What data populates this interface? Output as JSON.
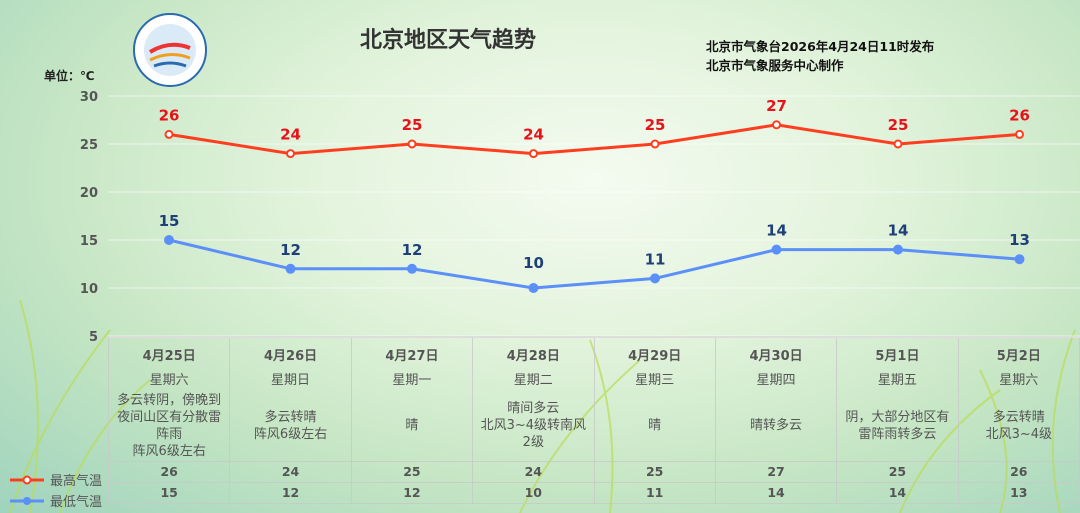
{
  "header": {
    "title": "北京地区天气趋势",
    "issuer_line1": "北京市气象台2026年4月24日11时发布",
    "issuer_line2": "北京市气象服务中心制作",
    "unit": "单位：℃",
    "logo_text": "METEOROLOGICAL SERVICE 北京气象"
  },
  "chart_data": {
    "type": "line",
    "title": "北京地区天气趋势",
    "ylabel": "单位：℃",
    "ylim": [
      5,
      30
    ],
    "yticks": [
      5,
      10,
      15,
      20,
      25,
      30
    ],
    "grid": true,
    "legend_placement": "bottom-left",
    "categories": [
      "4月25日",
      "4月26日",
      "4月27日",
      "4月28日",
      "4月29日",
      "4月30日",
      "5月1日",
      "5月2日"
    ],
    "series": [
      {
        "name": "最高气温",
        "color": "#ff3d1f",
        "label_color": "#e8121a",
        "values": [
          26,
          24,
          25,
          24,
          25,
          27,
          25,
          26
        ]
      },
      {
        "name": "最低气温",
        "color": "#5b8ff9",
        "label_color": "#1f3f78",
        "values": [
          15,
          12,
          12,
          10,
          11,
          14,
          14,
          13
        ]
      }
    ]
  },
  "table": {
    "weekdays": [
      "星期六",
      "星期日",
      "星期一",
      "星期二",
      "星期三",
      "星期四",
      "星期五",
      "星期六"
    ],
    "weather": [
      [
        "多云转阴，傍晚到",
        "夜间山区有分散雷",
        "阵雨",
        "阵风6级左右"
      ],
      [
        "多云转晴",
        "阵风6级左右"
      ],
      [
        "晴"
      ],
      [
        "晴间多云",
        "北风3~4级转南风",
        "2级"
      ],
      [
        "晴"
      ],
      [
        "晴转多云"
      ],
      [
        "阴，大部分地区有",
        "雷阵雨转多云"
      ],
      [
        "多云转晴",
        "北风3~4级"
      ]
    ]
  }
}
